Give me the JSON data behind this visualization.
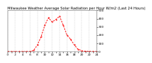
{
  "title": "Milwaukee Weather Average Solar Radiation per Hour W/m2 (Last 24 Hours)",
  "hours": [
    0,
    1,
    2,
    3,
    4,
    5,
    6,
    7,
    8,
    9,
    10,
    11,
    12,
    13,
    14,
    15,
    16,
    17,
    18,
    19,
    20,
    21,
    22,
    23,
    24
  ],
  "values": [
    2,
    1,
    1,
    1,
    1,
    1,
    3,
    15,
    80,
    180,
    320,
    410,
    360,
    390,
    430,
    320,
    200,
    150,
    80,
    30,
    10,
    5,
    3,
    2,
    1
  ],
  "line_color": "#ff0000",
  "bg_color": "#ffffff",
  "plot_bg": "#ffffff",
  "grid_color": "#aaaaaa",
  "ylim": [
    0,
    500
  ],
  "yticks": [
    0,
    100,
    200,
    300,
    400,
    500
  ],
  "xlim": [
    0,
    24
  ],
  "title_fontsize": 3.8,
  "tick_fontsize": 3.2,
  "linewidth": 0.7,
  "markersize": 1.0
}
